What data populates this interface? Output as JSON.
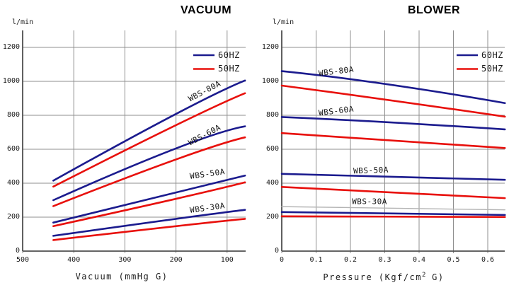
{
  "figure_type": "dual performance curve chart",
  "accent_colors": {
    "line_60hz": "#1b1b8e",
    "line_50hz": "#e8100c",
    "grid": "#8f8f8f",
    "axis": "#4f4f4f",
    "faint_line": "#b4b4b4"
  },
  "chart_data": [
    {
      "type": "line",
      "id": "vacuum",
      "title": "VACUUM",
      "y_unit": "l/min",
      "xlabel": "Vacuum (mmHg G)",
      "ylabel": "l/min",
      "x_ticks": [
        500,
        400,
        300,
        200,
        100
      ],
      "y_ticks": [
        0,
        200,
        400,
        600,
        800,
        1000,
        1200
      ],
      "x_axis_reversed": true,
      "xlim": [
        500,
        62
      ],
      "ylim": [
        0,
        1300
      ],
      "grid": true,
      "legend_position": "top-right",
      "legend": [
        {
          "label": "60HZ",
          "color": "#1b1b8e"
        },
        {
          "label": "50HZ",
          "color": "#e8100c"
        }
      ],
      "curve_labels": [
        "WBS-80A",
        "WBS-60A",
        "WBS-50A",
        "WBS-30A"
      ],
      "series": [
        {
          "name": "WBS-80A 60HZ",
          "color": "#1b1b8e",
          "points": [
            [
              440,
              415
            ],
            [
              200,
              808
            ],
            [
              65,
              1005
            ]
          ]
        },
        {
          "name": "WBS-80A 50HZ",
          "color": "#e8100c",
          "points": [
            [
              440,
              380
            ],
            [
              200,
              742
            ],
            [
              65,
              930
            ]
          ]
        },
        {
          "name": "WBS-60A 60HZ",
          "color": "#1b1b8e",
          "points": [
            [
              440,
              300
            ],
            [
              200,
              605
            ],
            [
              65,
              735
            ]
          ]
        },
        {
          "name": "WBS-60A 50HZ",
          "color": "#e8100c",
          "points": [
            [
              440,
              265
            ],
            [
              200,
              540
            ],
            [
              65,
              670
            ]
          ]
        },
        {
          "name": "WBS-50A 60HZ",
          "color": "#1b1b8e",
          "points": [
            [
              440,
              168
            ],
            [
              200,
              345
            ],
            [
              65,
              445
            ]
          ]
        },
        {
          "name": "WBS-50A 50HZ",
          "color": "#e8100c",
          "points": [
            [
              440,
              147
            ],
            [
              200,
              308
            ],
            [
              65,
              405
            ]
          ]
        },
        {
          "name": "WBS-30A 60HZ",
          "color": "#1b1b8e",
          "points": [
            [
              440,
              90
            ],
            [
              200,
              190
            ],
            [
              65,
              243
            ]
          ]
        },
        {
          "name": "WBS-30A 50HZ",
          "color": "#e8100c",
          "points": [
            [
              440,
              65
            ],
            [
              200,
              147
            ],
            [
              65,
              190
            ]
          ]
        }
      ]
    },
    {
      "type": "line",
      "id": "blower",
      "title": "BLOWER",
      "y_unit": "l/min",
      "xlabel": "Pressure (Kgf/cm2 G)",
      "xlabel_parts": {
        "pre": "Pressure (Kgf/cm",
        "sup": "2",
        "post": " G)"
      },
      "ylabel": "l/min",
      "x_ticks": [
        0,
        0.1,
        0.2,
        0.3,
        0.4,
        0.5,
        0.6
      ],
      "y_ticks": [
        0,
        200,
        400,
        600,
        800,
        1000,
        1200
      ],
      "x_axis_reversed": false,
      "xlim": [
        0,
        0.65
      ],
      "ylim": [
        0,
        1300
      ],
      "grid": true,
      "legend_position": "top-right",
      "legend": [
        {
          "label": "60HZ",
          "color": "#1b1b8e"
        },
        {
          "label": "50HZ",
          "color": "#e8100c"
        }
      ],
      "curve_labels": [
        "WBS-80A",
        "WBS-60A",
        "WBS-50A",
        "WBS-30A"
      ],
      "series": [
        {
          "name": "WBS-80A 60HZ",
          "color": "#1b1b8e",
          "points": [
            [
              0,
              1060
            ],
            [
              0.3,
              985
            ],
            [
              0.65,
              872
            ]
          ]
        },
        {
          "name": "WBS-80A 50HZ",
          "color": "#e8100c",
          "points": [
            [
              0,
              975
            ],
            [
              0.3,
              893
            ],
            [
              0.65,
              792
            ]
          ]
        },
        {
          "name": "WBS-60A 60HZ",
          "color": "#1b1b8e",
          "points": [
            [
              0,
              790
            ],
            [
              0.3,
              760
            ],
            [
              0.65,
              717
            ]
          ]
        },
        {
          "name": "WBS-60A 50HZ",
          "color": "#e8100c",
          "points": [
            [
              0,
              695
            ],
            [
              0.3,
              655
            ],
            [
              0.65,
              607
            ]
          ]
        },
        {
          "name": "WBS-50A 60HZ",
          "color": "#1b1b8e",
          "points": [
            [
              0,
              455
            ],
            [
              0.3,
              440
            ],
            [
              0.65,
              420
            ]
          ]
        },
        {
          "name": "WBS-50A 50HZ",
          "color": "#e8100c",
          "points": [
            [
              0,
              378
            ],
            [
              0.3,
              348
            ],
            [
              0.65,
              312
            ]
          ]
        },
        {
          "name": "WBS-30A 60HZ",
          "color": "#1b1b8e",
          "points": [
            [
              0,
              230
            ],
            [
              0.3,
              221
            ],
            [
              0.65,
              213
            ]
          ]
        },
        {
          "name": "WBS-30A 50HZ",
          "color": "#e8100c",
          "points": [
            [
              0,
              205
            ],
            [
              0.3,
              203
            ],
            [
              0.65,
              201
            ]
          ]
        },
        {
          "name": "unlabeled faint line",
          "color": "#b4b4b4",
          "points": [
            [
              0,
              262
            ],
            [
              0.3,
              252
            ],
            [
              0.65,
              243
            ]
          ]
        }
      ]
    }
  ]
}
